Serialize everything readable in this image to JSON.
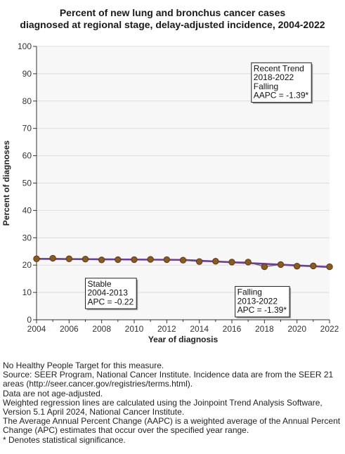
{
  "chart_data": {
    "type": "line",
    "title": [
      "Percent of new lung and bronchus cancer cases",
      "diagnosed at regional stage, delay-adjusted incidence, 2004-2022"
    ],
    "xlabel": "Year of diagnosis",
    "ylabel": "Percent of diagnoses",
    "xlim": [
      2004,
      2022
    ],
    "ylim": [
      0,
      100
    ],
    "xticks": [
      2004,
      2006,
      2008,
      2010,
      2012,
      2014,
      2016,
      2018,
      2020,
      2022
    ],
    "yticks": [
      0,
      10,
      20,
      30,
      40,
      50,
      60,
      70,
      80,
      90,
      100
    ],
    "grid": true,
    "series": [
      {
        "kind": "observed",
        "x": [
          2004,
          2005,
          2006,
          2007,
          2008,
          2009,
          2010,
          2011,
          2012,
          2013,
          2014,
          2015,
          2016,
          2017,
          2018,
          2019,
          2020,
          2021,
          2022
        ],
        "y": [
          22.3,
          22.5,
          22.3,
          22.2,
          21.9,
          22.0,
          22.0,
          22.1,
          22.0,
          21.8,
          21.3,
          21.4,
          21.1,
          21.1,
          19.4,
          20.2,
          19.6,
          19.7,
          19.4
        ]
      },
      {
        "kind": "trend",
        "color": "#6b3fa0",
        "x": [
          2004,
          2013,
          2022
        ],
        "y": [
          22.3,
          21.9,
          19.3
        ]
      }
    ],
    "colors": {
      "marker_fill": "#8b5a1e",
      "marker_stroke": "#5c3a10",
      "trend": "#6b3fa0",
      "grid": "#dcdcdc",
      "plot_bg": "#f7f7f7"
    },
    "annotations": [
      {
        "id": "recent",
        "lines": [
          "Recent Trend",
          "2018-2022",
          "Falling",
          "AAPC = -1.39*"
        ],
        "anchor_x": 2017.2,
        "anchor_y": 94.0
      },
      {
        "id": "stable",
        "lines": [
          "Stable",
          "2004-2013",
          "APC = -0.22"
        ],
        "anchor_x": 2007.0,
        "anchor_y": 15.2
      },
      {
        "id": "falling",
        "lines": [
          "Falling",
          "2013-2022",
          "APC = -1.39*"
        ],
        "anchor_x": 2016.2,
        "anchor_y": 12.2
      }
    ]
  },
  "footnotes": [
    "No Healthy People Target for this measure.",
    "Source: SEER Program, National Cancer Institute. Incidence data are from the SEER 21",
    "areas (http://seer.cancer.gov/registries/terms.html).",
    "Data are not age-adjusted.",
    "Weighted regression lines are calculated using the Joinpoint Trend Analysis Software,",
    "Version 5.1 April 2024, National Cancer Institute.",
    "The Average Annual Percent Change (AAPC) is a weighted average of the Annual Percent",
    "Change (APC) estimates that occur over the specified year range.",
    "* Denotes statistical significance."
  ]
}
